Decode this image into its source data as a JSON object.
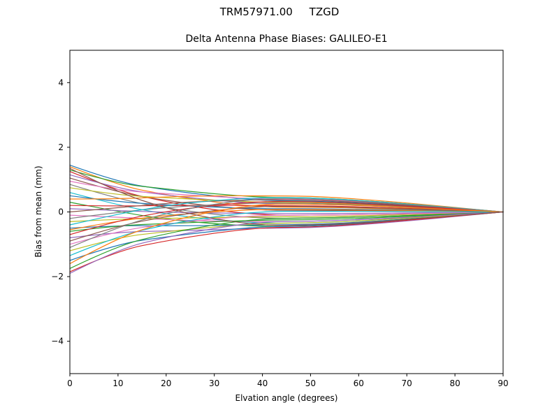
{
  "chart_data": {
    "type": "line",
    "suptitle": "TRM57971.00     TZGD",
    "title": "Delta Antenna Phase Biases: GALILEO-E1",
    "xlabel": "Elvation angle (degrees)",
    "ylabel": "Bias from mean (mm)",
    "xlim": [
      0,
      90
    ],
    "ylim": [
      -5,
      5
    ],
    "xticks": [
      0,
      10,
      20,
      30,
      40,
      50,
      60,
      70,
      80,
      90
    ],
    "yticks": [
      -4,
      -2,
      0,
      2,
      4
    ],
    "grid": false,
    "legend": "none",
    "background": "#ffffff",
    "axis_color": "#000000",
    "palette": [
      "#1f77b4",
      "#ff7f0e",
      "#2ca02c",
      "#d62728",
      "#9467bd",
      "#8c564b",
      "#e377c2",
      "#7f7f7f",
      "#bcbd22",
      "#17becf"
    ],
    "x": [
      0,
      10,
      20,
      30,
      40,
      50,
      60,
      70,
      80,
      90
    ],
    "series": [
      [
        1.45,
        0.92,
        0.68,
        0.49,
        0.35,
        0.34,
        0.28,
        0.19,
        0.1,
        0
      ],
      [
        1.4,
        0.82,
        0.53,
        0.3,
        0.15,
        0.15,
        0.12,
        0.08,
        0.04,
        0
      ],
      [
        1.3,
        0.87,
        0.71,
        0.56,
        0.45,
        0.44,
        0.36,
        0.25,
        0.13,
        0
      ],
      [
        1.25,
        0.65,
        0.31,
        0.06,
        -0.1,
        -0.1,
        -0.08,
        -0.06,
        -0.03,
        0
      ],
      [
        1.15,
        0.72,
        0.52,
        0.36,
        0.25,
        0.24,
        0.2,
        0.14,
        0.07,
        0
      ],
      [
        1.05,
        0.6,
        0.35,
        0.17,
        0.05,
        0.05,
        0.04,
        0.03,
        0.01,
        0
      ],
      [
        0.95,
        0.66,
        0.57,
        0.47,
        0.4,
        0.39,
        0.32,
        0.22,
        0.11,
        0
      ],
      [
        0.85,
        0.4,
        0.12,
        -0.08,
        -0.2,
        -0.19,
        -0.16,
        -0.11,
        -0.06,
        0
      ],
      [
        0.75,
        0.52,
        0.44,
        0.36,
        0.3,
        0.29,
        0.24,
        0.17,
        0.08,
        0
      ],
      [
        0.6,
        0.21,
        -0.07,
        -0.24,
        -0.35,
        -0.34,
        -0.28,
        -0.19,
        -0.1,
        0
      ],
      [
        0.5,
        0.31,
        0.22,
        0.15,
        0.1,
        0.1,
        0.08,
        0.06,
        0.03,
        0
      ],
      [
        0.4,
        0.4,
        0.47,
        0.5,
        0.5,
        0.49,
        0.4,
        0.28,
        0.14,
        0
      ],
      [
        0.3,
        0.01,
        -0.23,
        -0.37,
        -0.45,
        -0.44,
        -0.36,
        -0.25,
        -0.13,
        0
      ],
      [
        0.2,
        0.18,
        0.2,
        0.2,
        0.2,
        0.19,
        0.16,
        0.11,
        0.06,
        0
      ],
      [
        0.1,
        0.04,
        -0.01,
        -0.03,
        -0.05,
        -0.05,
        -0.04,
        -0.03,
        -0.01,
        0
      ],
      [
        0.0,
        0.13,
        0.27,
        0.34,
        0.38,
        0.37,
        0.3,
        0.21,
        0.11,
        0
      ],
      [
        -0.1,
        -0.16,
        -0.24,
        -0.28,
        -0.3,
        -0.29,
        -0.24,
        -0.17,
        -0.08,
        0
      ],
      [
        -0.2,
        -0.01,
        0.14,
        0.23,
        0.28,
        0.27,
        0.22,
        0.15,
        0.08,
        0
      ],
      [
        -0.3,
        -0.22,
        -0.2,
        -0.17,
        -0.15,
        -0.15,
        -0.12,
        -0.08,
        -0.04,
        0
      ],
      [
        -0.4,
        -0.06,
        0.2,
        0.36,
        0.45,
        0.44,
        0.36,
        0.25,
        0.13,
        0
      ],
      [
        -0.5,
        -0.42,
        -0.43,
        -0.42,
        -0.4,
        -0.39,
        -0.32,
        -0.22,
        -0.11,
        0
      ],
      [
        -0.55,
        -0.27,
        -0.11,
        0.01,
        0.08,
        0.08,
        0.06,
        0.04,
        0.02,
        0
      ],
      [
        -0.6,
        -0.42,
        -0.36,
        -0.3,
        -0.25,
        -0.24,
        -0.2,
        -0.14,
        -0.07,
        0
      ],
      [
        -0.7,
        -0.27,
        0.02,
        0.21,
        0.33,
        0.32,
        0.26,
        0.18,
        0.09,
        0
      ],
      [
        -0.8,
        -0.62,
        -0.59,
        -0.55,
        -0.5,
        -0.49,
        -0.4,
        -0.28,
        -0.14,
        0
      ],
      [
        -0.9,
        -0.43,
        -0.14,
        0.05,
        0.18,
        0.17,
        0.14,
        0.1,
        0.05,
        0
      ],
      [
        -1.0,
        -0.59,
        -0.37,
        -0.21,
        -0.1,
        -0.1,
        -0.08,
        -0.06,
        -0.03,
        0
      ],
      [
        -1.1,
        -0.46,
        -0.04,
        0.25,
        0.42,
        0.41,
        0.34,
        0.23,
        0.12,
        0
      ],
      [
        -1.2,
        -0.78,
        -0.61,
        -0.46,
        -0.35,
        -0.34,
        -0.28,
        -0.19,
        -0.1,
        0
      ],
      [
        -1.35,
        -0.74,
        -0.39,
        -0.14,
        0.02,
        0.02,
        0.02,
        0.01,
        0.01,
        0
      ],
      [
        -1.5,
        -0.98,
        -0.77,
        -0.59,
        -0.45,
        -0.44,
        -0.36,
        -0.25,
        -0.13,
        0
      ],
      [
        -1.6,
        -0.79,
        -0.31,
        0.03,
        0.25,
        0.24,
        0.2,
        0.14,
        0.07,
        0
      ],
      [
        -1.75,
        -1.03,
        -0.67,
        -0.39,
        -0.2,
        -0.19,
        -0.16,
        -0.11,
        -0.06,
        0
      ],
      [
        -1.85,
        -1.19,
        -0.89,
        -0.65,
        -0.48,
        -0.47,
        -0.38,
        -0.26,
        -0.13,
        0
      ],
      [
        -1.9,
        -1.15,
        -0.78,
        -0.5,
        -0.3,
        -0.29,
        -0.24,
        -0.17,
        -0.08,
        0
      ],
      [
        1.35,
        0.6,
        0.11,
        -0.22,
        -0.42,
        -0.41,
        -0.34,
        -0.23,
        -0.12,
        0
      ]
    ]
  }
}
